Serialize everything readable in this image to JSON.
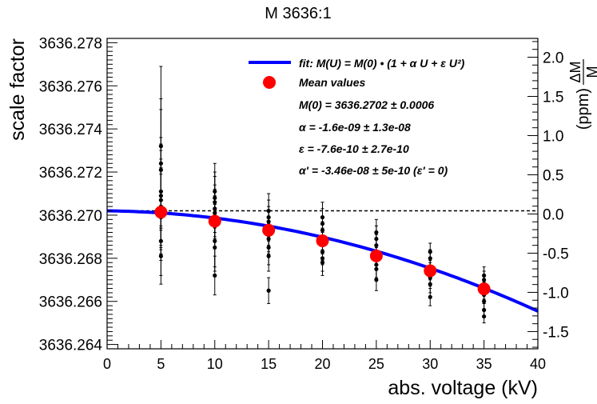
{
  "chart_data": {
    "type": "scatter",
    "title": "M 3636:1",
    "xlabel": "abs. voltage (kV)",
    "ylabel": "scale factor",
    "y2label_top": "ΔM",
    "y2label_bottom": "M",
    "y2label_unit": "(ppm)",
    "xlim": [
      0,
      40
    ],
    "ylim": [
      3636.2638,
      3636.2782
    ],
    "y2lim": [
      -1.72,
      2.24
    ],
    "x_ticks": [
      0,
      5,
      10,
      15,
      20,
      25,
      30,
      35,
      40
    ],
    "x_tick_labels": [
      "0",
      "5",
      "10",
      "15",
      "20",
      "25",
      "30",
      "35",
      "40"
    ],
    "y_ticks": [
      3636.264,
      3636.266,
      3636.268,
      3636.27,
      3636.272,
      3636.274,
      3636.276,
      3636.278
    ],
    "y_tick_labels": [
      "3636.264",
      "3636.266",
      "3636.268",
      "3636.270",
      "3636.272",
      "3636.274",
      "3636.276",
      "3636.278"
    ],
    "y2_ticks": [
      -1.5,
      -1.0,
      -0.5,
      0.0,
      0.5,
      1.0,
      1.5,
      2.0
    ],
    "y2_tick_labels": [
      "-1.5",
      "-1.0",
      "-0.5",
      "0.0",
      "0.5",
      "1.0",
      "1.5",
      "2.0"
    ],
    "reference_line": 3636.2702,
    "fit": {
      "m0": 3636.2702,
      "alpha_ppm": -0.0016,
      "eps_ppm": -0.00076
    },
    "individual_points": [
      {
        "x": 5,
        "y": 3636.2732,
        "err": 0.0037
      },
      {
        "x": 5,
        "y": 3636.2724,
        "err": 0.003
      },
      {
        "x": 5,
        "y": 3636.2721,
        "err": 0.0028
      },
      {
        "x": 5,
        "y": 3636.2711,
        "err": 0.0025
      },
      {
        "x": 5,
        "y": 3636.2709,
        "err": 0.0024
      },
      {
        "x": 5,
        "y": 3636.2707,
        "err": 0.0023
      },
      {
        "x": 5,
        "y": 3636.2704,
        "err": 0.0022
      },
      {
        "x": 5,
        "y": 3636.2702,
        "err": 0.002
      },
      {
        "x": 5,
        "y": 3636.2699,
        "err": 0.002
      },
      {
        "x": 5,
        "y": 3636.2688,
        "err": 0.0016
      },
      {
        "x": 5,
        "y": 3636.2681,
        "err": 0.0013
      },
      {
        "x": 10,
        "y": 3636.2711,
        "err": 0.0013
      },
      {
        "x": 10,
        "y": 3636.2708,
        "err": 0.0012
      },
      {
        "x": 10,
        "y": 3636.2706,
        "err": 0.0012
      },
      {
        "x": 10,
        "y": 3636.2703,
        "err": 0.0011
      },
      {
        "x": 10,
        "y": 3636.2701,
        "err": 0.0011
      },
      {
        "x": 10,
        "y": 3636.2699,
        "err": 0.001
      },
      {
        "x": 10,
        "y": 3636.2695,
        "err": 0.001
      },
      {
        "x": 10,
        "y": 3636.2688,
        "err": 0.0012
      },
      {
        "x": 10,
        "y": 3636.2685,
        "err": 0.0011
      },
      {
        "x": 10,
        "y": 3636.2672,
        "err": 0.0009
      },
      {
        "x": 15,
        "y": 3636.2702,
        "err": 0.0008
      },
      {
        "x": 15,
        "y": 3636.2699,
        "err": 0.0008
      },
      {
        "x": 15,
        "y": 3636.2697,
        "err": 0.0007
      },
      {
        "x": 15,
        "y": 3636.2694,
        "err": 0.0008
      },
      {
        "x": 15,
        "y": 3636.2691,
        "err": 0.0008
      },
      {
        "x": 15,
        "y": 3636.2689,
        "err": 0.0007
      },
      {
        "x": 15,
        "y": 3636.2685,
        "err": 0.0008
      },
      {
        "x": 15,
        "y": 3636.2681,
        "err": 0.0007
      },
      {
        "x": 15,
        "y": 3636.2665,
        "err": 0.0006
      },
      {
        "x": 20,
        "y": 3636.2699,
        "err": 0.0007
      },
      {
        "x": 20,
        "y": 3636.2696,
        "err": 0.0007
      },
      {
        "x": 20,
        "y": 3636.2693,
        "err": 0.0006
      },
      {
        "x": 20,
        "y": 3636.269,
        "err": 0.0007
      },
      {
        "x": 20,
        "y": 3636.2688,
        "err": 0.0006
      },
      {
        "x": 20,
        "y": 3636.2686,
        "err": 0.0007
      },
      {
        "x": 20,
        "y": 3636.2683,
        "err": 0.0006
      },
      {
        "x": 20,
        "y": 3636.268,
        "err": 0.0006
      },
      {
        "x": 20,
        "y": 3636.2678,
        "err": 0.0006
      },
      {
        "x": 25,
        "y": 3636.2692,
        "err": 0.0006
      },
      {
        "x": 25,
        "y": 3636.2689,
        "err": 0.0006
      },
      {
        "x": 25,
        "y": 3636.2686,
        "err": 0.0005
      },
      {
        "x": 25,
        "y": 3636.2683,
        "err": 0.0006
      },
      {
        "x": 25,
        "y": 3636.268,
        "err": 0.0005
      },
      {
        "x": 25,
        "y": 3636.2677,
        "err": 0.0006
      },
      {
        "x": 25,
        "y": 3636.2675,
        "err": 0.0005
      },
      {
        "x": 25,
        "y": 3636.267,
        "err": 0.0005
      },
      {
        "x": 30,
        "y": 3636.2683,
        "err": 0.0004
      },
      {
        "x": 30,
        "y": 3636.268,
        "err": 0.0004
      },
      {
        "x": 30,
        "y": 3636.2676,
        "err": 0.0004
      },
      {
        "x": 30,
        "y": 3636.2674,
        "err": 0.0004
      },
      {
        "x": 30,
        "y": 3636.2671,
        "err": 0.0004
      },
      {
        "x": 30,
        "y": 3636.2668,
        "err": 0.0004
      },
      {
        "x": 30,
        "y": 3636.2662,
        "err": 0.0004
      },
      {
        "x": 35,
        "y": 3636.2672,
        "err": 0.0004
      },
      {
        "x": 35,
        "y": 3636.267,
        "err": 0.0004
      },
      {
        "x": 35,
        "y": 3636.2668,
        "err": 0.0004
      },
      {
        "x": 35,
        "y": 3636.2665,
        "err": 0.0004
      },
      {
        "x": 35,
        "y": 3636.2663,
        "err": 0.0004
      },
      {
        "x": 35,
        "y": 3636.266,
        "err": 0.0004
      },
      {
        "x": 35,
        "y": 3636.2656,
        "err": 0.0003
      },
      {
        "x": 35,
        "y": 3636.2653,
        "err": 0.0003
      }
    ],
    "mean_values": [
      {
        "x": 5,
        "y": 3636.27014
      },
      {
        "x": 10,
        "y": 3636.26972
      },
      {
        "x": 15,
        "y": 3636.2693
      },
      {
        "x": 20,
        "y": 3636.26881
      },
      {
        "x": 25,
        "y": 3636.26811
      },
      {
        "x": 30,
        "y": 3636.26742
      },
      {
        "x": 35,
        "y": 3636.26658
      }
    ],
    "legend_position": "top-right",
    "legend": {
      "fit_label": "fit: M(U) = M(0) • (1 + α U + ε U²)",
      "mean_label": "Mean values",
      "m0_line": "M(0) = 3636.2702 ± 0.0006",
      "alpha_line": "α = -1.6e-09 ± 1.3e-08",
      "eps_line": "ε = -7.6e-10 ± 2.7e-10",
      "alpha_prime_line": "α' = -3.46e-08 ± 5e-10  (ε' = 0)"
    },
    "colors": {
      "fit": "#0000ff",
      "mean": "#ff0000",
      "points": "#000000",
      "reference": "#000000"
    }
  }
}
